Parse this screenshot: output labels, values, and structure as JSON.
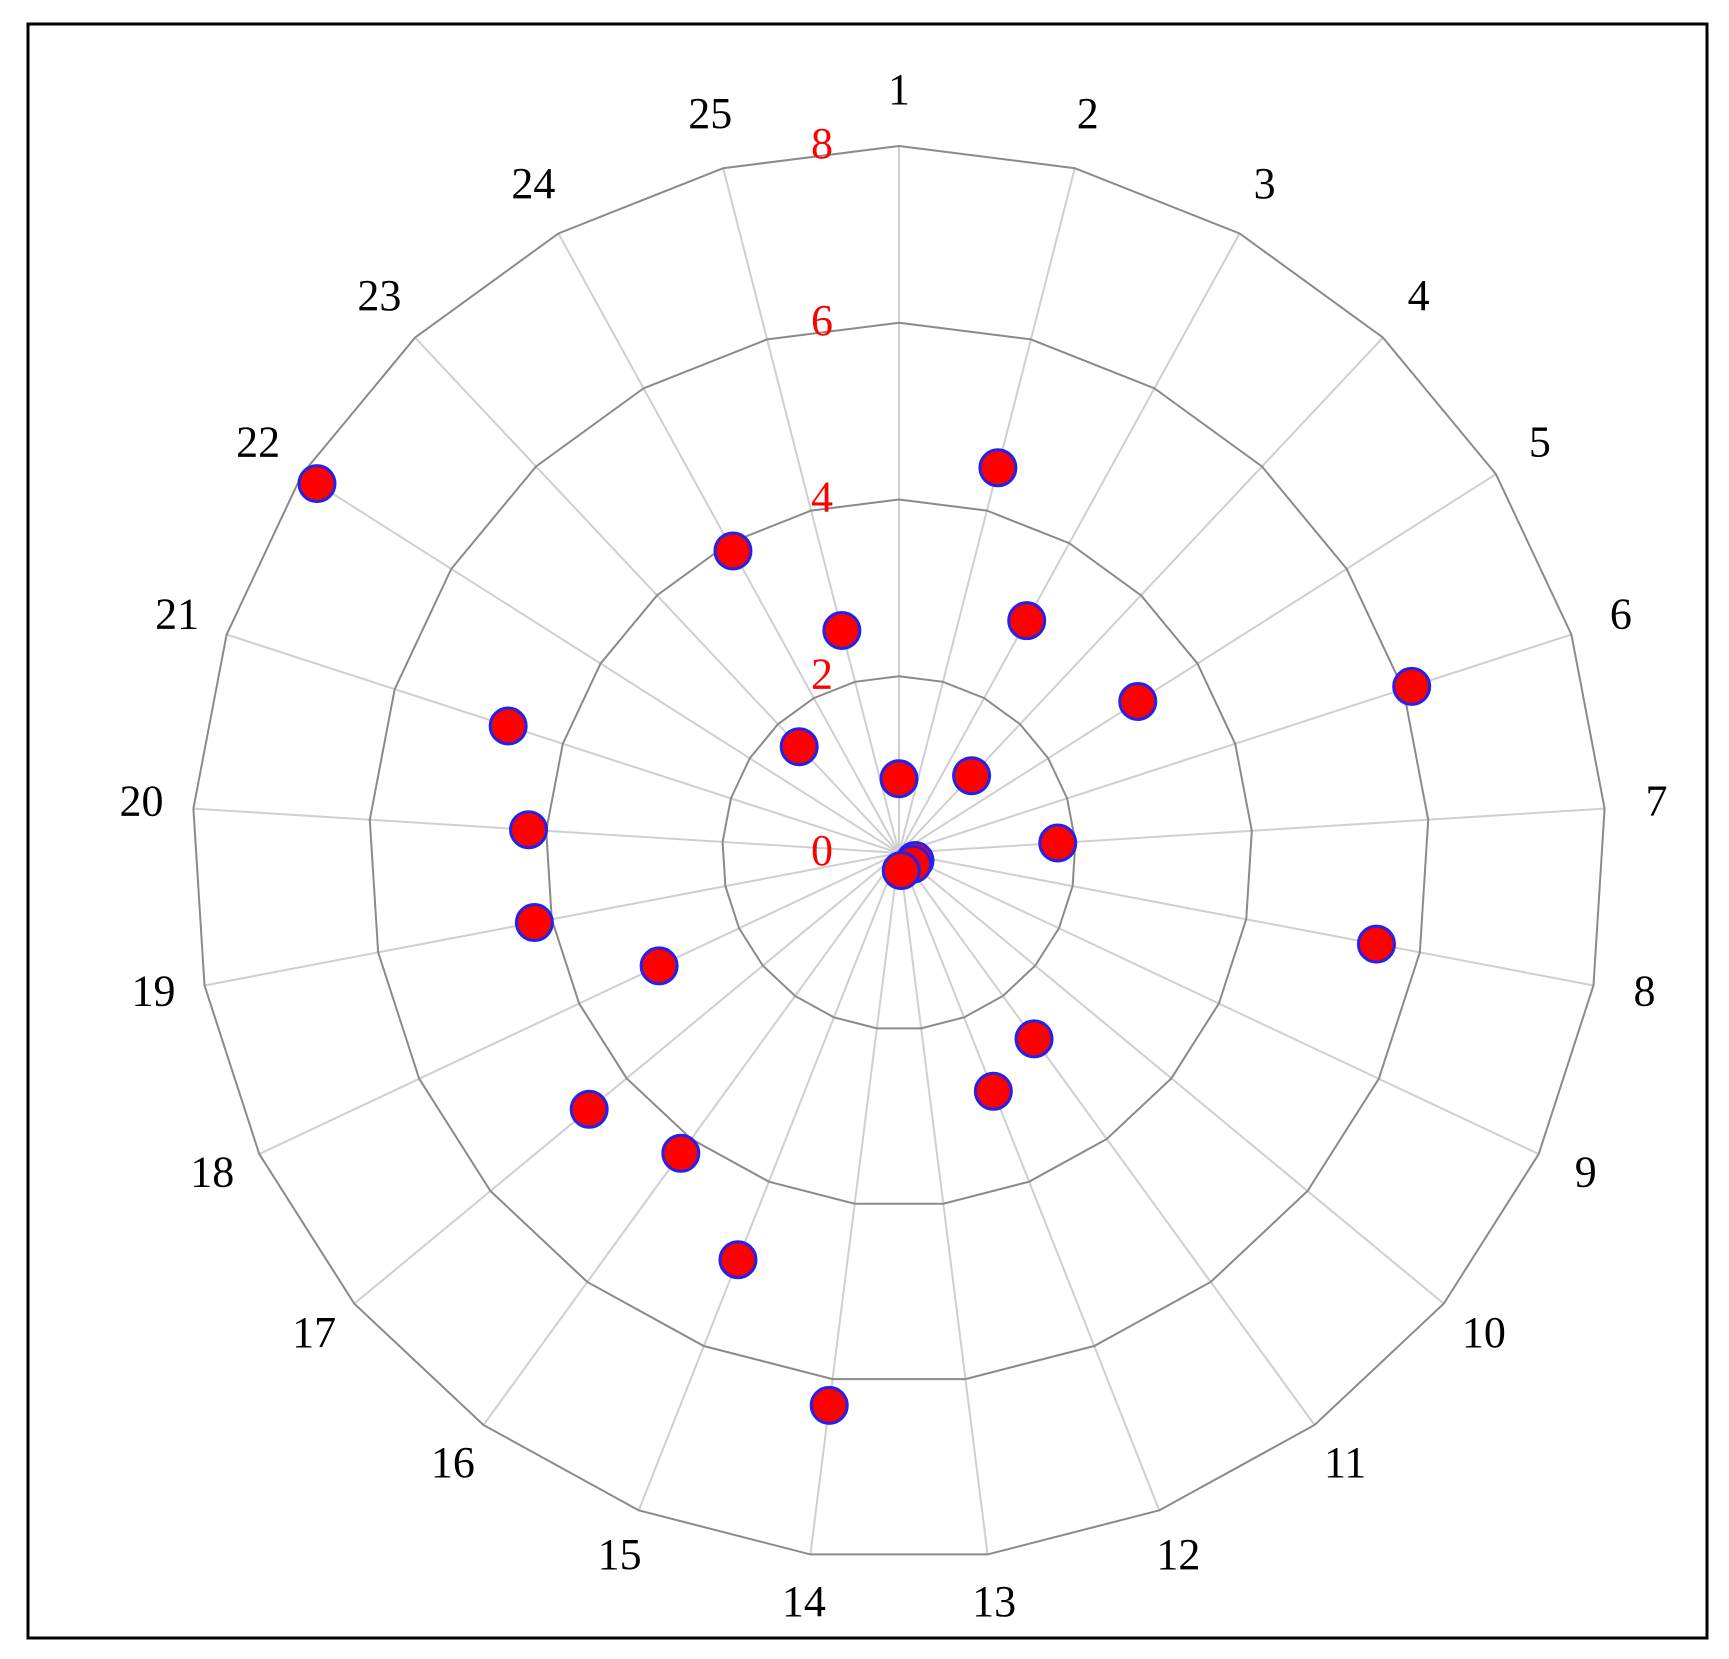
{
  "chart_data": {
    "type": "polar",
    "categories": [
      "1",
      "2",
      "3",
      "4",
      "5",
      "6",
      "7",
      "8",
      "9",
      "10",
      "11",
      "12",
      "13",
      "14",
      "15",
      "16",
      "17",
      "18",
      "19",
      "20",
      "21",
      "22",
      "23",
      "24",
      "25"
    ],
    "values": [
      0.84,
      4.5,
      3.0,
      1.2,
      3.2,
      6.1,
      1.8,
      5.5,
      0.2,
      0.2,
      2.6,
      2.9,
      0.2,
      6.3,
      4.95,
      4.2,
      4.55,
      3.0,
      4.2,
      4.2,
      4.65,
      7.8,
      1.65,
      3.9,
      2.6
    ],
    "color": "#ff0000",
    "edge_color": "#2222ee",
    "tick_color": "#ff0000",
    "rlim": [
      0,
      8
    ],
    "rticks": [
      0,
      2,
      4,
      6,
      8
    ],
    "grid": true
  }
}
